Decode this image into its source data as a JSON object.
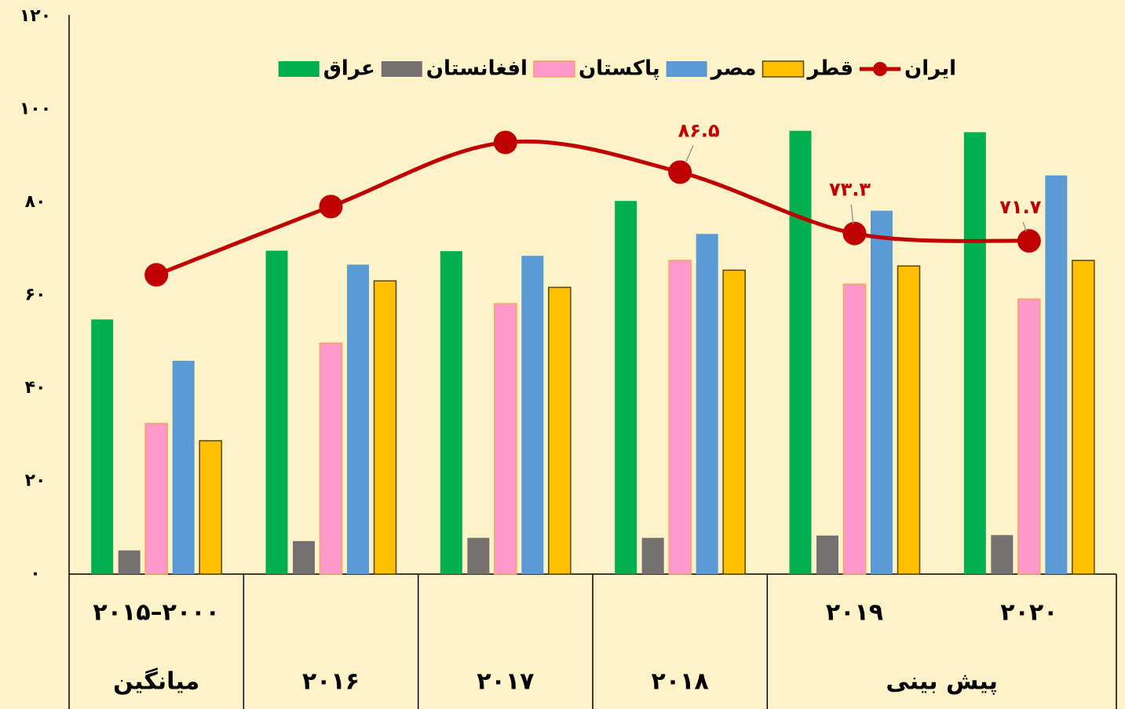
{
  "chart_data": {
    "type": "bar",
    "categories": [
      "۲۰۱۵–۲۰۰۰",
      null,
      null,
      null,
      "۲۰۱۹",
      "۲۰۲۰"
    ],
    "category_groups": [
      {
        "label": "میانگین",
        "count": 1
      },
      {
        "label": "۲۰۱۶",
        "count": 1
      },
      {
        "label": "۲۰۱۷",
        "count": 1
      },
      {
        "label": "۲۰۱۸",
        "count": 1
      },
      {
        "label": "پیش بینی",
        "count": 2
      }
    ],
    "series": [
      {
        "name": "عراق",
        "color": "#00b050",
        "values": [
          54.8,
          69.6,
          69.5,
          80.3,
          95.4,
          95.1
        ]
      },
      {
        "name": "افغانستان",
        "color": "#767171",
        "values": [
          5.1,
          7.1,
          7.8,
          7.8,
          8.3,
          8.4
        ]
      },
      {
        "name": "پاکستان",
        "color": "#ff99cc",
        "edge": "#f4a460",
        "values": [
          32.4,
          49.7,
          58.2,
          67.5,
          62.4,
          59.2
        ]
      },
      {
        "name": "مصر",
        "color": "#5b9bd5",
        "values": [
          45.9,
          66.6,
          68.5,
          73.2,
          78.2,
          85.8
        ]
      },
      {
        "name": "قطر",
        "color": "#ffc000",
        "edge": "#5a4500",
        "values": [
          28.7,
          63.1,
          61.7,
          65.4,
          66.3,
          67.5
        ]
      },
      {
        "name": "ایران",
        "type": "line",
        "color": "#c00000",
        "values": [
          64.4,
          79.1,
          92.9,
          86.5,
          73.3,
          71.7
        ],
        "value_labels": [
          null,
          null,
          null,
          "۸۶.۵",
          "۷۳.۳",
          "۷۱.۷"
        ]
      }
    ],
    "ylim": [
      0,
      120
    ],
    "yticks": [
      {
        "value": 0,
        "label": "۰"
      },
      {
        "value": 20,
        "label": "۲۰"
      },
      {
        "value": 40,
        "label": "۴۰"
      },
      {
        "value": 60,
        "label": "۶۰"
      },
      {
        "value": 80,
        "label": "۸۰"
      },
      {
        "value": 100,
        "label": "۱۰۰"
      },
      {
        "value": 120,
        "label": "۱۲۰"
      }
    ],
    "grid": false,
    "legend": "top"
  }
}
